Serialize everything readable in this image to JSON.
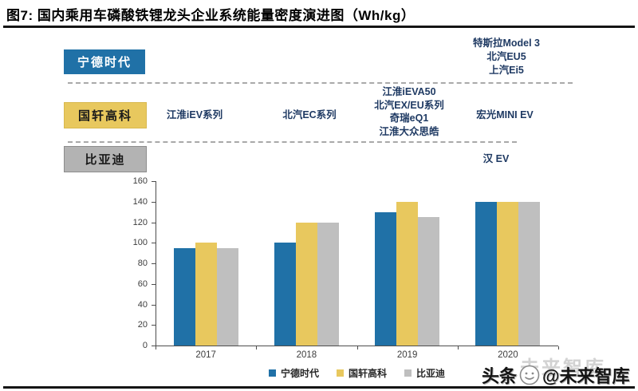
{
  "figure": {
    "title": "图7: 国内乘用车磷酸铁锂龙头企业系统能量密度演进图（Wh/kg）"
  },
  "companies": [
    {
      "name": "宁德时代",
      "box_color": "#2071A7",
      "text_color": "#FFFFFF"
    },
    {
      "name": "国轩高科",
      "box_color": "#E8C85E",
      "text_color": "#1A1A1A"
    },
    {
      "name": "比亚迪",
      "box_color": "#B3B3B3",
      "text_color": "#1A1A1A"
    }
  ],
  "annotations": {
    "catl_2020_lines": [
      "特斯拉Model 3",
      "北汽EU5",
      "上汽Ei5"
    ],
    "gotion_2017": "江淮iEV系列",
    "gotion_2018": "北汽EC系列",
    "gotion_2019_lines": [
      "江淮iEVA50",
      "北汽EX/EU系列",
      "奇瑞eQ1",
      "江淮大众思皓"
    ],
    "gotion_2020": "宏光MINI EV",
    "byd_2020": "汉 EV"
  },
  "chart_data": {
    "type": "bar",
    "title": "国内乘用车磷酸铁锂龙头企业系统能量密度演进图（Wh/kg）",
    "categories": [
      "2017",
      "2018",
      "2019",
      "2020"
    ],
    "series": [
      {
        "name": "宁德时代",
        "color": "#2071A7",
        "values": [
          95,
          100,
          130,
          140
        ]
      },
      {
        "name": "国轩高科",
        "color": "#E8C85E",
        "values": [
          100,
          120,
          140,
          140
        ]
      },
      {
        "name": "比亚迪",
        "color": "#BFBFBF",
        "values": [
          95,
          120,
          125,
          140
        ]
      }
    ],
    "xlabel": "",
    "ylabel": "",
    "ylim": [
      0,
      160
    ],
    "ytick_interval": 20,
    "grid": false,
    "legend_position": "bottom"
  },
  "watermark": {
    "background_text": "未来智库",
    "credit_prefix": "头条",
    "credit_suffix": "@未来智库"
  }
}
